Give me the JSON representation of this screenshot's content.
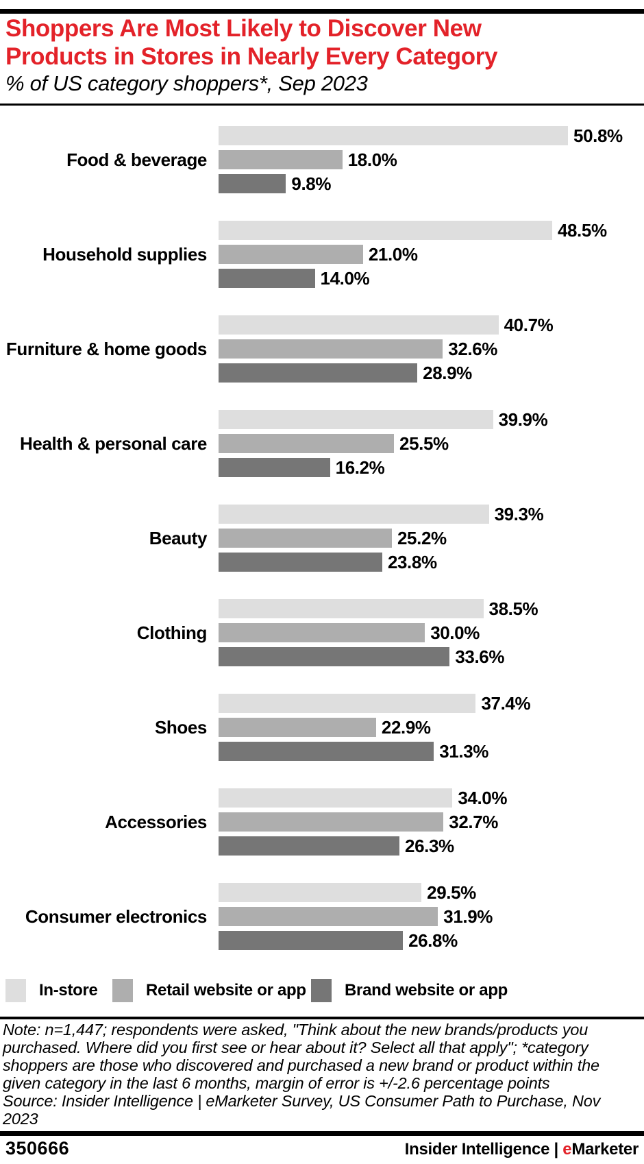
{
  "colors": {
    "accent_red": "#e32229",
    "bar_light": "#dedede",
    "bar_medium": "#aeaeae",
    "bar_dark": "#767676",
    "rule_black": "#000000"
  },
  "header": {
    "title_lines": [
      "Shoppers Are Most Likely to Discover New",
      "Products in Stores in Nearly Every Category"
    ],
    "subtitle": "% of US category shoppers*, Sep 2023"
  },
  "chart_data": {
    "type": "bar",
    "orientation": "horizontal",
    "title": "Shoppers Are Most Likely to Discover New Products in Stores in Nearly Every Category",
    "subtitle": "% of US category shoppers*, Sep 2023",
    "value_suffix": "%",
    "axis_range": [
      0,
      55
    ],
    "grid": false,
    "legend_position": "bottom",
    "categories": [
      "Food & beverage",
      "Household supplies",
      "Furniture & home goods",
      "Health & personal care",
      "Beauty",
      "Clothing",
      "Shoes",
      "Accessories",
      "Consumer electronics"
    ],
    "series": [
      {
        "name": "In-store",
        "color": "#dedede",
        "values": [
          50.8,
          48.5,
          40.7,
          39.9,
          39.3,
          38.5,
          37.4,
          34.0,
          29.5
        ]
      },
      {
        "name": "Retail website or app",
        "color": "#aeaeae",
        "values": [
          18.0,
          21.0,
          32.6,
          25.5,
          25.2,
          30.0,
          22.9,
          32.7,
          31.9
        ]
      },
      {
        "name": "Brand website or app",
        "color": "#767676",
        "values": [
          9.8,
          14.0,
          28.9,
          16.2,
          23.8,
          33.6,
          31.3,
          26.3,
          26.8
        ]
      }
    ]
  },
  "footnote": {
    "note_lines": [
      "Note: n=1,447; respondents were asked, \"Think about the new brands/products you",
      "purchased. Where did you first see or hear about it? Select all that apply\"; *category",
      "shoppers are those who discovered and purchased a new brand or product within the",
      "given category in the last 6 months, margin of error is +/-2.6 percentage points"
    ],
    "source_lines": [
      "Source: Insider Intelligence | eMarketer Survey, US Consumer Path to Purchase, Nov",
      "2023"
    ]
  },
  "footer": {
    "chart_id": "350666",
    "brand_left": "Insider Intelligence | ",
    "brand_e": "e",
    "brand_rest": "Marketer"
  }
}
